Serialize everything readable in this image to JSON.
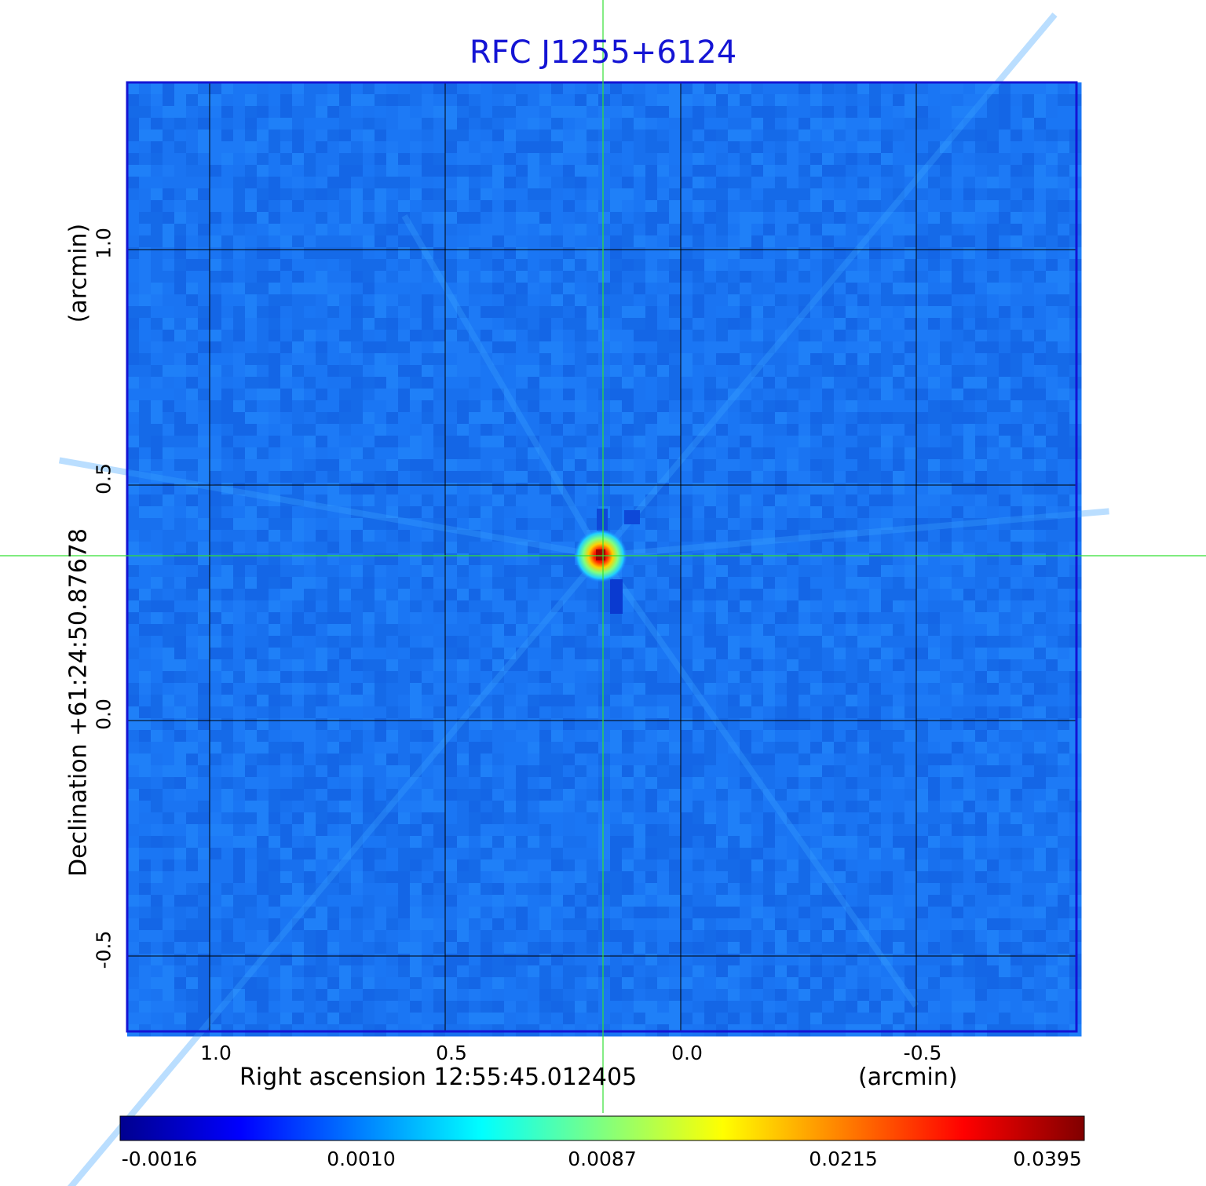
{
  "chart_data": {
    "type": "heatmap",
    "title": "RFC J1255+6124",
    "xlabel": "Right ascension  12:55:45.012405",
    "xunit": "(arcmin)",
    "ylabel": "Declination  +61:24:50.87678",
    "yunit": "(arcmin)",
    "x_ticks": [
      {
        "value": 1.0,
        "label": "1.0"
      },
      {
        "value": 0.5,
        "label": "0.5"
      },
      {
        "value": 0.0,
        "label": "0.0"
      },
      {
        "value": -0.5,
        "label": "-0.5"
      }
    ],
    "y_ticks": [
      {
        "value": 1.0,
        "label": "1.0"
      },
      {
        "value": 0.5,
        "label": "0.5"
      },
      {
        "value": 0.0,
        "label": "0.0"
      },
      {
        "value": -0.5,
        "label": "-0.5"
      }
    ],
    "xlim": [
      1.175,
      -0.84
    ],
    "ylim": [
      -0.66,
      1.355
    ],
    "grid": true,
    "crosshair": {
      "x": 0.165,
      "y": 0.35,
      "color": "#33e033"
    },
    "source_peak": {
      "x": 0.17,
      "y": 0.35,
      "value": 0.0395
    },
    "colormap": "jet",
    "colorbar": {
      "ticks": [
        "-0.0016",
        "0.0010",
        "0.0087",
        "0.0215",
        "0.0395"
      ],
      "range": [
        -0.0016,
        0.0395
      ]
    },
    "frame_color": "#1414d4"
  }
}
